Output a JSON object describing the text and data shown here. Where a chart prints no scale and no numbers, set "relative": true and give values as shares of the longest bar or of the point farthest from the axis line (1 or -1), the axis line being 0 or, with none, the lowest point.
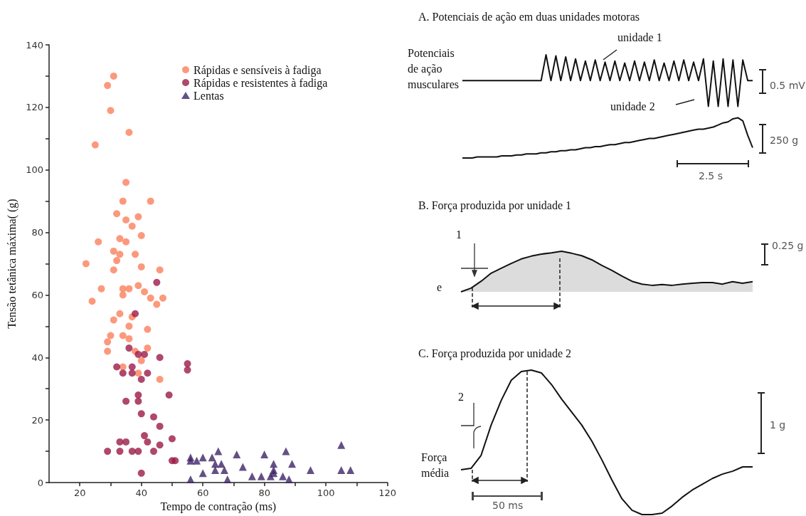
{
  "chart_data": [
    {
      "type": "scatter",
      "xlabel": "Tempo de contração (ms)",
      "ylabel": "Tensão tetânica máxima( (g)",
      "xlim": [
        10,
        120
      ],
      "ylim": [
        0,
        140
      ],
      "xticks": [
        20,
        {
          "value": 30,
          "label": null
        },
        40,
        {
          "value": 50,
          "label": null
        },
        60,
        {
          "value": 70,
          "label": null
        },
        80,
        {
          "value": 90,
          "label": null
        },
        100,
        {
          "value": 110,
          "label": null
        },
        120
      ],
      "yticks": [
        0,
        {
          "value": 10,
          "label": null
        },
        20,
        {
          "value": 30,
          "label": null
        },
        40,
        {
          "value": 50,
          "label": null
        },
        60,
        {
          "value": 70,
          "label": null
        },
        80,
        {
          "value": 90,
          "label": null
        },
        100,
        {
          "value": 110,
          "label": null
        },
        120,
        {
          "value": 130,
          "label": null
        },
        140
      ],
      "legend": "top right",
      "series": [
        {
          "name": "Rápidas e sensíveis à fadiga",
          "color": "#fb7f5b",
          "marker": "circle",
          "x": [
            31,
            29,
            30,
            36,
            25,
            35,
            34,
            43,
            32,
            39,
            35,
            37,
            40,
            26,
            33,
            35,
            31,
            33,
            38,
            32,
            22,
            31,
            40,
            46,
            27,
            34,
            36,
            39,
            41,
            34,
            43,
            47,
            45,
            24,
            31,
            33,
            37,
            36,
            42,
            30,
            34,
            36,
            29,
            42,
            29,
            38,
            40,
            34,
            39,
            46
          ],
          "values": [
            130,
            127,
            119,
            112,
            108,
            96,
            90,
            90,
            86,
            85,
            84,
            82,
            79,
            77,
            78,
            77,
            74,
            73,
            73,
            71,
            70,
            68,
            69,
            68,
            62,
            62,
            62,
            63,
            61,
            60,
            59,
            59,
            57,
            58,
            52,
            54,
            53,
            50,
            49,
            47,
            47,
            46,
            45,
            43,
            42,
            42,
            39,
            37,
            35,
            33
          ]
        },
        {
          "name": "Rápidas e resistentes à fadiga",
          "color": "#9b1a47",
          "marker": "circle",
          "x": [
            45,
            38,
            36,
            39,
            41,
            46,
            55,
            55,
            32,
            37,
            34,
            37,
            42,
            40,
            39,
            39,
            49,
            35,
            40,
            44,
            46,
            41,
            50,
            35,
            33,
            42,
            46,
            29,
            33,
            37,
            39,
            44,
            50,
            51,
            40
          ],
          "values": [
            64,
            54,
            43,
            41,
            41,
            40,
            38,
            36,
            37,
            37,
            35,
            35,
            35,
            33,
            28,
            26,
            28,
            26,
            22,
            21,
            18,
            15,
            14,
            13,
            13,
            13,
            12,
            10,
            10,
            10,
            10,
            10,
            7,
            7,
            3
          ]
        },
        {
          "name": "Lentas",
          "color": "#3d2466",
          "marker": "triangle",
          "x": [
            56,
            56,
            58,
            60,
            63,
            65,
            64,
            66,
            64,
            67,
            60,
            56,
            68,
            71,
            73,
            76,
            79,
            80,
            82,
            83,
            83,
            83,
            86,
            87,
            89,
            88,
            95,
            105,
            105,
            108
          ],
          "values": [
            8,
            7,
            7,
            8,
            8,
            10,
            6,
            6,
            4,
            4,
            3,
            1,
            1,
            9,
            5,
            2,
            2,
            9,
            2,
            6,
            4,
            3,
            2,
            10,
            6,
            1,
            4,
            12,
            4,
            4
          ]
        }
      ]
    },
    {
      "type": "line",
      "title": "A. Potenciais de ação em duas unidades motoras",
      "relative": true,
      "categories": [
        null,
        null,
        null,
        null,
        null,
        null,
        null,
        null,
        null,
        null,
        null,
        null,
        null,
        null,
        null,
        null,
        null,
        null,
        null,
        null,
        null,
        null,
        null,
        null,
        null,
        null,
        null,
        null,
        null,
        null,
        null,
        null,
        null,
        null,
        null,
        null,
        null,
        null,
        null,
        null,
        null,
        null,
        null,
        null,
        null,
        null,
        null,
        null,
        null,
        null,
        null,
        null,
        null,
        null,
        null,
        null,
        null,
        null,
        null,
        null
      ],
      "annotations": [
        "unidade 1",
        "unidade 2",
        "Potenciais de ação musculares",
        "0.5 mV",
        "250 g",
        "2.5 s"
      ],
      "series": [
        {
          "color": "#111111",
          "values": [
            0.75,
            0.75,
            0.75,
            0.75,
            0.75,
            0.75,
            0.75,
            0.75,
            0.75,
            0.75,
            0.75,
            0.75,
            0.75,
            0.75,
            0.75,
            0.75,
            0.75,
            1.0,
            0.75,
            0.99,
            0.75,
            0.98,
            0.75,
            0.96,
            0.75,
            0.94,
            0.75,
            0.95,
            0.75,
            0.93,
            0.75,
            0.94,
            0.75,
            0.92,
            0.75,
            0.94,
            0.75,
            0.93,
            0.75,
            0.95,
            0.75,
            0.92,
            0.75,
            0.94,
            0.75,
            0.95,
            0.75,
            0.93,
            0.75,
            0.96,
            0.5,
            0.94,
            0.5,
            0.96,
            0.5,
            0.95,
            0.5,
            0.95,
            0.75,
            0.75
          ]
        },
        {
          "color": "#111111",
          "values": [
            0,
            0,
            0,
            0.01,
            0.01,
            0.01,
            0.01,
            0.01,
            0.02,
            0.02,
            0.02,
            0.03,
            0.03,
            0.04,
            0.04,
            0.04,
            0.05,
            0.05,
            0.06,
            0.06,
            0.07,
            0.07,
            0.08,
            0.08,
            0.09,
            0.1,
            0.1,
            0.11,
            0.11,
            0.12,
            0.13,
            0.13,
            0.14,
            0.15,
            0.15,
            0.16,
            0.17,
            0.18,
            0.19,
            0.19,
            0.2,
            0.21,
            0.22,
            0.23,
            0.24,
            0.25,
            0.26,
            0.27,
            0.28,
            0.28,
            0.29,
            0.3,
            0.32,
            0.34,
            0.35,
            0.38,
            0.39,
            0.36,
            0.22,
            0.1
          ]
        }
      ]
    },
    {
      "type": "area",
      "title": "B. Força produzida por unidade 1",
      "relative": true,
      "categories": [
        null,
        null,
        null,
        null,
        null,
        null,
        null,
        null,
        null,
        null,
        null,
        null,
        null,
        null,
        null,
        null,
        null,
        null,
        null,
        null,
        null,
        null,
        null,
        null,
        null,
        null,
        null,
        null,
        null,
        null
      ],
      "annotations": [
        "1",
        "e",
        "0.25 g"
      ],
      "series": [
        {
          "color": "#111111",
          "values": [
            0,
            0.09,
            0.26,
            0.46,
            0.58,
            0.7,
            0.81,
            0.88,
            0.93,
            0.96,
            1.0,
            0.95,
            0.89,
            0.79,
            0.65,
            0.53,
            0.39,
            0.26,
            0.19,
            0.16,
            0.18,
            0.16,
            0.19,
            0.21,
            0.23,
            0.23,
            0.19,
            0.25,
            0.21,
            0.25
          ]
        }
      ]
    },
    {
      "type": "line",
      "title": "C. Força produzida por unidade 2",
      "relative": true,
      "categories": [
        null,
        null,
        null,
        null,
        null,
        null,
        null,
        null,
        null,
        null,
        null,
        null,
        null,
        null,
        null,
        null,
        null,
        null,
        null,
        null,
        null,
        null,
        null,
        null,
        null,
        null,
        null,
        null,
        null,
        null
      ],
      "annotations": [
        "2",
        "Força média",
        "1 g",
        "50 ms"
      ],
      "series": [
        {
          "color": "#111111",
          "values": [
            0.31,
            0.32,
            0.41,
            0.62,
            0.79,
            0.93,
            0.99,
            1.0,
            0.98,
            0.9,
            0.8,
            0.71,
            0.62,
            0.51,
            0.38,
            0.24,
            0.11,
            0.03,
            0.0,
            0.0,
            0.01,
            0.06,
            0.12,
            0.17,
            0.21,
            0.25,
            0.28,
            0.3,
            0.33,
            0.33
          ]
        }
      ]
    }
  ]
}
